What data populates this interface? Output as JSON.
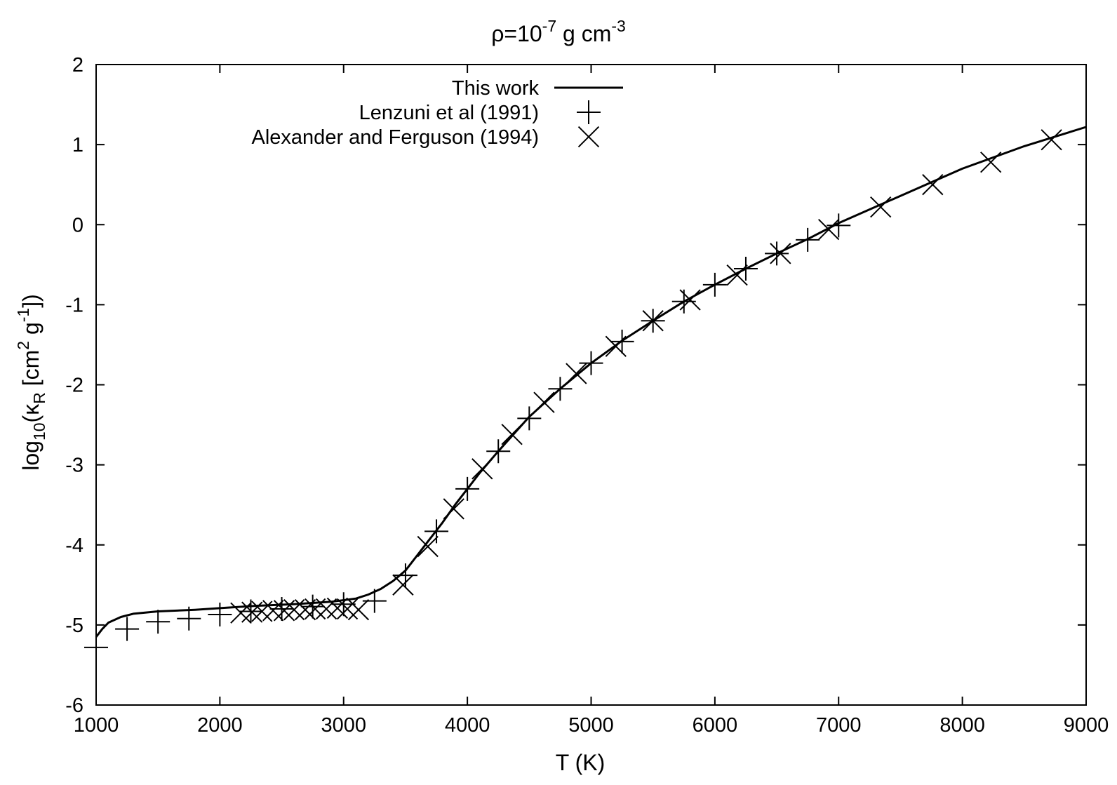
{
  "chart_data": {
    "type": "line",
    "title": {
      "prefix": "ρ=10",
      "exponent": "-7",
      "middle": " g cm",
      "exponent2": "-3"
    },
    "xlabel": "T (K)",
    "ylabel": {
      "base": "log",
      "sub": "10",
      "open": "(κ",
      "sub2": "R",
      "mid": " [cm",
      "sup": "2",
      "mid2": " g",
      "sup2": "-1",
      "close": "])"
    },
    "xlim": [
      1000,
      9000
    ],
    "ylim": [
      -6,
      2
    ],
    "x_ticks": [
      1000,
      2000,
      3000,
      4000,
      5000,
      6000,
      7000,
      8000,
      9000
    ],
    "y_ticks": [
      -6,
      -5,
      -4,
      -3,
      -2,
      -1,
      0,
      1,
      2
    ],
    "legend_position": "top-left",
    "series": [
      {
        "name": "This work",
        "style": "solid-line",
        "x": [
          1000,
          1050,
          1100,
          1200,
          1300,
          1500,
          1800,
          2000,
          2300,
          2600,
          2900,
          3100,
          3200,
          3300,
          3400,
          3500,
          3600,
          3700,
          3800,
          3900,
          4000,
          4100,
          4250,
          4500,
          4750,
          5000,
          5250,
          5500,
          5750,
          6000,
          6250,
          6500,
          6750,
          7000,
          7500,
          8000,
          8500,
          9000
        ],
        "y": [
          -5.15,
          -5.05,
          -4.97,
          -4.9,
          -4.86,
          -4.83,
          -4.81,
          -4.79,
          -4.76,
          -4.74,
          -4.71,
          -4.67,
          -4.62,
          -4.55,
          -4.45,
          -4.32,
          -4.12,
          -3.92,
          -3.72,
          -3.5,
          -3.3,
          -3.1,
          -2.83,
          -2.4,
          -2.05,
          -1.73,
          -1.45,
          -1.2,
          -0.96,
          -0.75,
          -0.55,
          -0.36,
          -0.18,
          0.02,
          0.36,
          0.7,
          0.98,
          1.22
        ]
      },
      {
        "name": "Lenzuni et al (1991)",
        "style": "plus",
        "x": [
          1000,
          1250,
          1500,
          1750,
          2000,
          2250,
          2500,
          2750,
          3000,
          3250,
          3500,
          3750,
          4000,
          4250,
          4500,
          4750,
          5000,
          5250,
          5500,
          5750,
          6000,
          6250,
          6500,
          6750,
          7000
        ],
        "y": [
          -5.28,
          -5.05,
          -4.96,
          -4.92,
          -4.87,
          -4.83,
          -4.8,
          -4.77,
          -4.74,
          -4.7,
          -4.38,
          -3.83,
          -3.3,
          -2.83,
          -2.42,
          -2.05,
          -1.73,
          -1.46,
          -1.2,
          -0.96,
          -0.75,
          -0.55,
          -0.36,
          -0.19,
          -0.01
        ]
      },
      {
        "name": "Alexander and Ferguson (1994)",
        "style": "cross",
        "x": [
          2170,
          2260,
          2340,
          2430,
          2520,
          2600,
          2690,
          2770,
          2860,
          2950,
          3030,
          3120,
          3480,
          3680,
          3890,
          4120,
          4360,
          4620,
          4880,
          5200,
          5500,
          5800,
          6180,
          6530,
          6920,
          7340,
          7760,
          8230,
          8720
        ],
        "y": [
          -4.85,
          -4.84,
          -4.83,
          -4.82,
          -4.82,
          -4.81,
          -4.81,
          -4.8,
          -4.8,
          -4.79,
          -4.8,
          -4.81,
          -4.5,
          -4.02,
          -3.55,
          -3.05,
          -2.62,
          -2.22,
          -1.86,
          -1.52,
          -1.2,
          -0.94,
          -0.63,
          -0.36,
          -0.06,
          0.22,
          0.5,
          0.78,
          1.06
        ]
      }
    ]
  }
}
